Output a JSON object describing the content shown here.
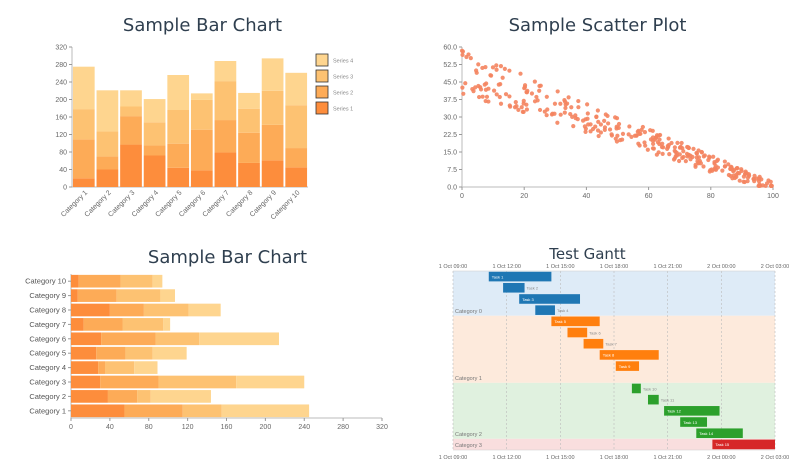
{
  "chart_data": [
    {
      "type": "bar",
      "stacked": true,
      "orientation": "vertical",
      "title": "Sample Bar Chart",
      "categories": [
        "Category 1",
        "Category 2",
        "Category 3",
        "Category 4",
        "Category 5",
        "Category 6",
        "Category 7",
        "Category 8",
        "Category 9",
        "Category 10"
      ],
      "series": [
        {
          "name": "Series 1",
          "color": "#fd8d3c",
          "values": [
            20,
            40,
            97,
            72,
            44,
            38,
            79,
            55,
            61,
            45
          ]
        },
        {
          "name": "Series 2",
          "color": "#fdab57",
          "values": [
            89,
            30,
            65,
            23,
            55,
            93,
            74,
            69,
            81,
            44
          ]
        },
        {
          "name": "Series 3",
          "color": "#fdc272",
          "values": [
            69,
            57,
            22,
            53,
            77,
            68,
            89,
            55,
            78,
            98
          ]
        },
        {
          "name": "Series 4",
          "color": "#fed58f",
          "values": [
            97,
            94,
            37,
            53,
            80,
            15,
            46,
            36,
            74,
            74
          ]
        }
      ],
      "legend_order": [
        "Series 4",
        "Series 3",
        "Series 2",
        "Series 1"
      ],
      "ylim": [
        0,
        320
      ],
      "yticks": [
        "0",
        "40",
        "80",
        "120",
        "160",
        "200",
        "240",
        "280",
        "320"
      ]
    },
    {
      "type": "scatter",
      "title": "Sample Scatter Plot",
      "color": "#f4845f",
      "xlim": [
        0,
        100
      ],
      "ylim": [
        0,
        60
      ],
      "xticks": [
        "0",
        "20",
        "40",
        "60",
        "80",
        "100"
      ],
      "yticks": [
        "0.0",
        "7.5",
        "15.0",
        "22.5",
        "30.0",
        "37.5",
        "45.0",
        "52.5",
        "60.0"
      ],
      "trend": {
        "slope": -0.5,
        "intercept": 50,
        "spread_at_x0": 10,
        "spread_at_x100": 2,
        "n_points": 320,
        "seed": 7
      }
    },
    {
      "type": "bar",
      "stacked": true,
      "orientation": "horizontal",
      "title": "Sample Bar Chart",
      "categories": [
        "Category 1",
        "Category 2",
        "Category 3",
        "Category 4",
        "Category 5",
        "Category 6",
        "Category 7",
        "Category 8",
        "Category 9",
        "Category 10"
      ],
      "series": [
        {
          "name": "Series 1",
          "color": "#fd8d3c",
          "values": [
            55,
            38,
            30,
            28,
            26,
            31,
            13,
            40,
            7,
            8
          ]
        },
        {
          "name": "Series 2",
          "color": "#fdab57",
          "values": [
            60,
            30,
            60,
            7,
            30,
            56,
            40,
            35,
            40,
            43
          ]
        },
        {
          "name": "Series 3",
          "color": "#fdc272",
          "values": [
            40,
            14,
            80,
            30,
            28,
            45,
            42,
            46,
            45,
            33
          ]
        },
        {
          "name": "Series 4",
          "color": "#fed58f",
          "values": [
            90,
            62,
            70,
            24,
            35,
            82,
            7,
            33,
            15,
            10
          ]
        }
      ],
      "xlim": [
        0,
        320
      ],
      "xticks": [
        "0",
        "40",
        "80",
        "120",
        "160",
        "200",
        "240",
        "280",
        "320"
      ]
    },
    {
      "type": "gantt",
      "title": "Test Gantt",
      "time_ticks": [
        "1 Oct 09:00",
        "1 Oct 12:00",
        "1 Oct 15:00",
        "1 Oct 18:00",
        "1 Oct 21:00",
        "2 Oct 00:00",
        "2 Oct 03:00"
      ],
      "time_range_hours": [
        0,
        18
      ],
      "categories": [
        {
          "name": "Category 0",
          "color": "#1f77b4",
          "bg": "#deebf7",
          "rows": 4
        },
        {
          "name": "Category 1",
          "color": "#ff7f0e",
          "bg": "#fdeadc",
          "rows": 6
        },
        {
          "name": "Category 2",
          "color": "#2ca02c",
          "bg": "#e0f1df",
          "rows": 5
        },
        {
          "name": "Category 3",
          "color": "#d62728",
          "bg": "#f9dede",
          "rows": 1
        }
      ],
      "tasks": [
        {
          "name": "Task 1",
          "cat": 0,
          "start": 2.0,
          "end": 5.5
        },
        {
          "name": "Task 2",
          "cat": 0,
          "start": 2.8,
          "end": 4.0
        },
        {
          "name": "Task 3",
          "cat": 0,
          "start": 3.7,
          "end": 7.1
        },
        {
          "name": "Task 4",
          "cat": 0,
          "start": 4.6,
          "end": 5.7
        },
        {
          "name": "Task 5",
          "cat": 1,
          "start": 5.5,
          "end": 8.2
        },
        {
          "name": "Task 6",
          "cat": 1,
          "start": 6.4,
          "end": 7.5
        },
        {
          "name": "Task 7",
          "cat": 1,
          "start": 7.3,
          "end": 8.4
        },
        {
          "name": "Task 8",
          "cat": 1,
          "start": 8.2,
          "end": 11.5
        },
        {
          "name": "Task 9",
          "cat": 1,
          "start": 9.1,
          "end": 10.4
        },
        {
          "name": "Task 10",
          "cat": 2,
          "start": 10.0,
          "end": 10.5
        },
        {
          "name": "Task 11",
          "cat": 2,
          "start": 10.9,
          "end": 11.5
        },
        {
          "name": "Task 12",
          "cat": 2,
          "start": 11.8,
          "end": 14.9
        },
        {
          "name": "Task 13",
          "cat": 2,
          "start": 12.7,
          "end": 14.2
        },
        {
          "name": "Task 14",
          "cat": 2,
          "start": 13.6,
          "end": 16.2
        },
        {
          "name": "Task 15",
          "cat": 3,
          "start": 14.5,
          "end": 18.0
        }
      ]
    }
  ]
}
